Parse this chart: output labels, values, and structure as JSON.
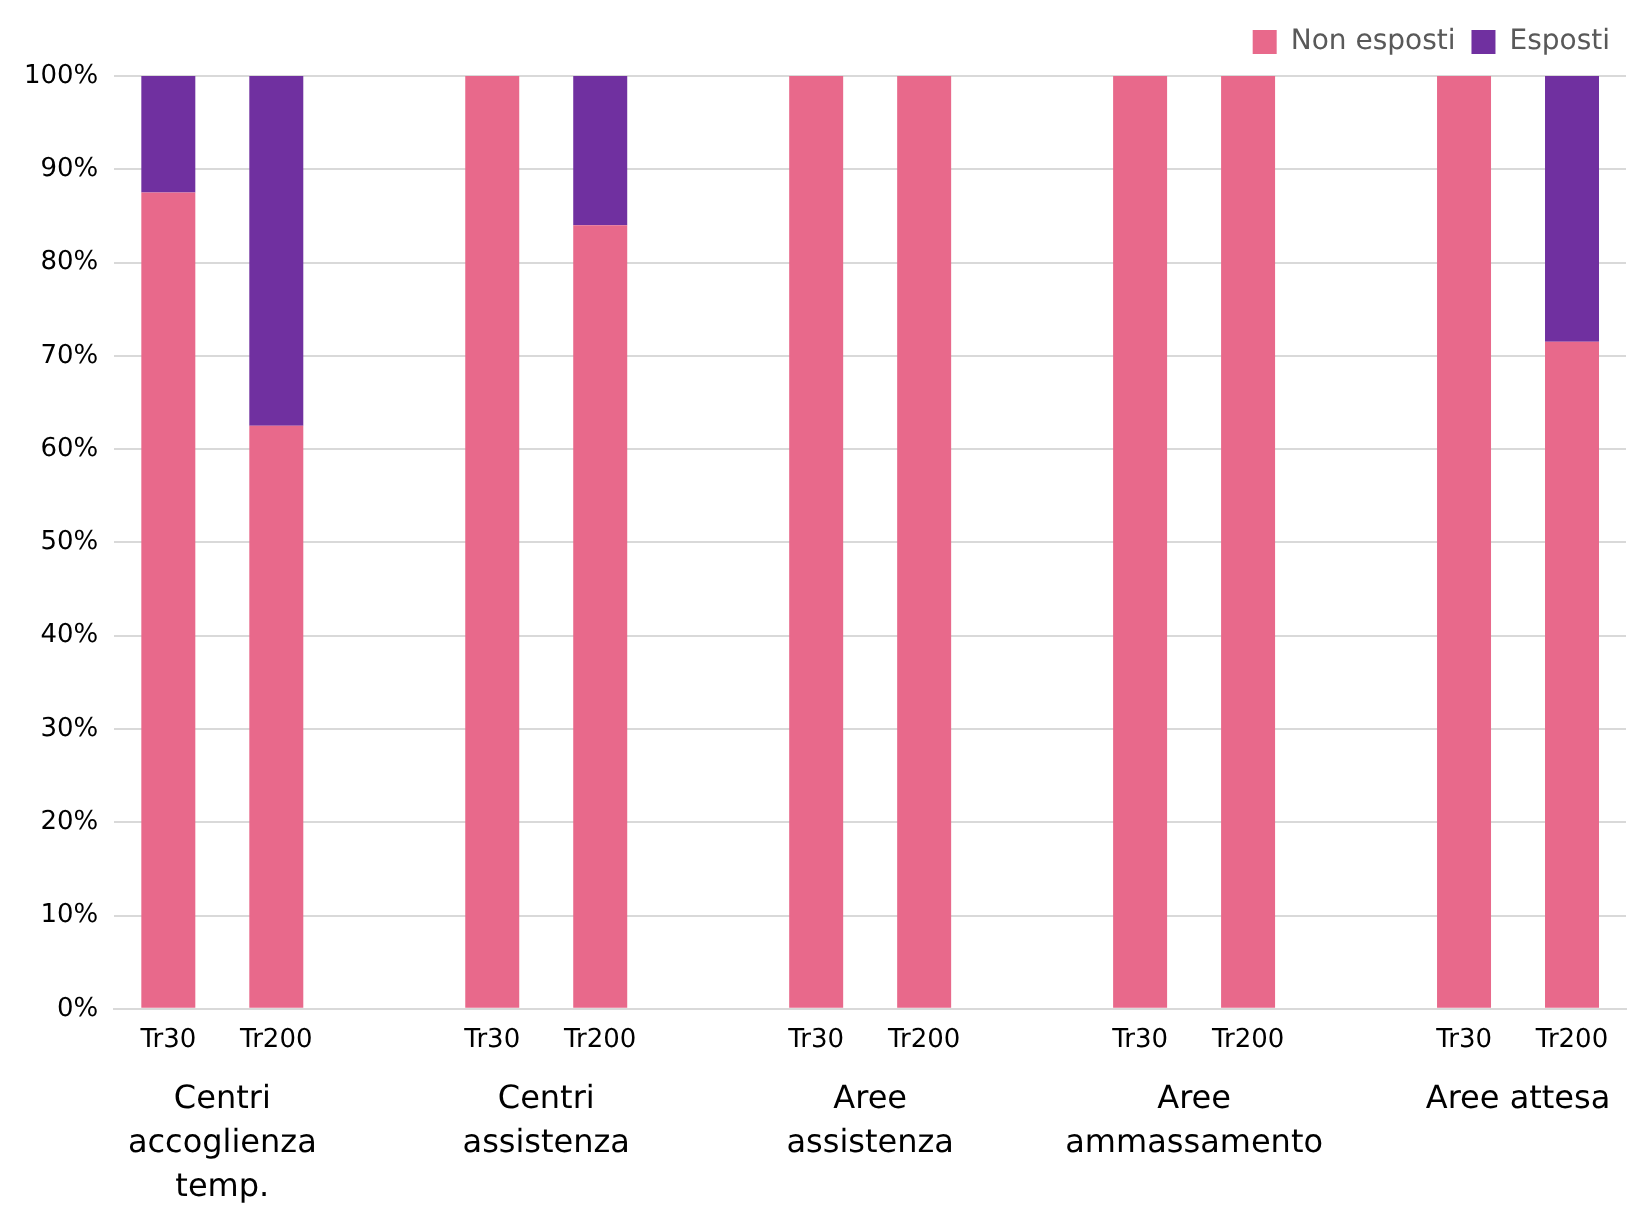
{
  "chart_data": {
    "type": "bar",
    "stacked": true,
    "categories": [
      "Tr30",
      "Tr200",
      null,
      "Tr30",
      "Tr200",
      null,
      "Tr30",
      "Tr200",
      null,
      "Tr30",
      "Tr200",
      null,
      "Tr30",
      "Tr200"
    ],
    "series": [
      {
        "name": "Non esposti",
        "color": "#e8698b",
        "values": [
          87.5,
          62.5,
          null,
          100,
          84,
          null,
          100,
          100,
          null,
          100,
          100,
          null,
          100,
          71.5
        ]
      },
      {
        "name": "Esposti",
        "color": "#7030a0",
        "values": [
          12.5,
          37.5,
          null,
          0,
          16,
          null,
          0,
          0,
          null,
          0,
          0,
          null,
          0,
          28.5
        ]
      }
    ],
    "ylim": [
      0,
      100
    ],
    "yticks": [
      {
        "value": 0,
        "label": "0%"
      },
      {
        "value": 10,
        "label": "10%"
      },
      {
        "value": 20,
        "label": "20%"
      },
      {
        "value": 30,
        "label": "30%"
      },
      {
        "value": 40,
        "label": "40%"
      },
      {
        "value": 50,
        "label": "50%"
      },
      {
        "value": 60,
        "label": "60%"
      },
      {
        "value": 70,
        "label": "70%"
      },
      {
        "value": 80,
        "label": "80%"
      },
      {
        "value": 90,
        "label": "90%"
      },
      {
        "value": 100,
        "label": "100%"
      }
    ],
    "grid": "y",
    "legend": "top right",
    "annotations": [
      "Centri accoglienza temp.",
      "Centri assistenza",
      "Aree assistenza",
      "Aree ammassamento",
      "Aree attesa"
    ]
  }
}
